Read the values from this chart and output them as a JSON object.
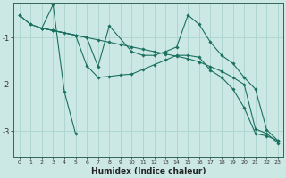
{
  "xlabel": "Humidex (Indice chaleur)",
  "bg_color": "#cce8e4",
  "grid_color": "#aad4cc",
  "line_color": "#1a7060",
  "marker_color": "#1a7060",
  "xlim": [
    -0.5,
    23.5
  ],
  "ylim": [
    -3.55,
    -0.25
  ],
  "yticks": [
    -3,
    -2,
    -1
  ],
  "xticks": [
    0,
    1,
    2,
    3,
    4,
    5,
    6,
    7,
    8,
    9,
    10,
    11,
    12,
    13,
    14,
    15,
    16,
    17,
    18,
    19,
    20,
    21,
    22,
    23
  ],
  "series": [
    {
      "x": [
        0,
        1,
        2,
        3,
        4,
        5
      ],
      "y": [
        -0.52,
        -0.72,
        -0.8,
        -0.3,
        -2.15,
        -3.05
      ]
    },
    {
      "x": [
        0,
        1,
        2,
        3,
        4,
        5,
        6,
        7,
        8,
        9,
        10,
        11,
        12,
        13,
        14,
        15,
        16,
        17,
        18,
        19,
        20,
        21,
        22,
        23
      ],
      "y": [
        -0.52,
        -0.72,
        -0.8,
        -0.85,
        -0.9,
        -0.95,
        -1.0,
        -1.05,
        -1.1,
        -1.15,
        -1.2,
        -1.25,
        -1.3,
        -1.35,
        -1.4,
        -1.45,
        -1.52,
        -1.62,
        -1.72,
        -1.85,
        -2.0,
        -2.95,
        -3.05,
        -3.25
      ]
    },
    {
      "x": [
        2,
        3,
        5,
        6,
        7,
        8,
        10,
        11,
        12,
        13,
        14,
        15,
        16,
        17,
        18,
        19,
        20,
        21,
        22,
        23
      ],
      "y": [
        -0.8,
        -0.85,
        -0.95,
        -1.0,
        -1.62,
        -0.75,
        -1.3,
        -1.38,
        -1.38,
        -1.3,
        -1.2,
        -0.52,
        -0.72,
        -1.1,
        -1.38,
        -1.55,
        -1.85,
        -2.1,
        -2.97,
        -3.2
      ]
    },
    {
      "x": [
        2,
        3,
        5,
        6,
        7,
        8,
        9,
        10,
        11,
        12,
        13,
        14,
        15,
        16,
        17,
        18,
        19,
        20,
        21,
        22,
        23
      ],
      "y": [
        -0.8,
        -0.85,
        -0.95,
        -1.6,
        -1.85,
        -1.83,
        -1.8,
        -1.78,
        -1.68,
        -1.58,
        -1.48,
        -1.38,
        -1.38,
        -1.42,
        -1.7,
        -1.85,
        -2.1,
        -2.5,
        -3.05,
        -3.1,
        -3.2
      ]
    }
  ]
}
